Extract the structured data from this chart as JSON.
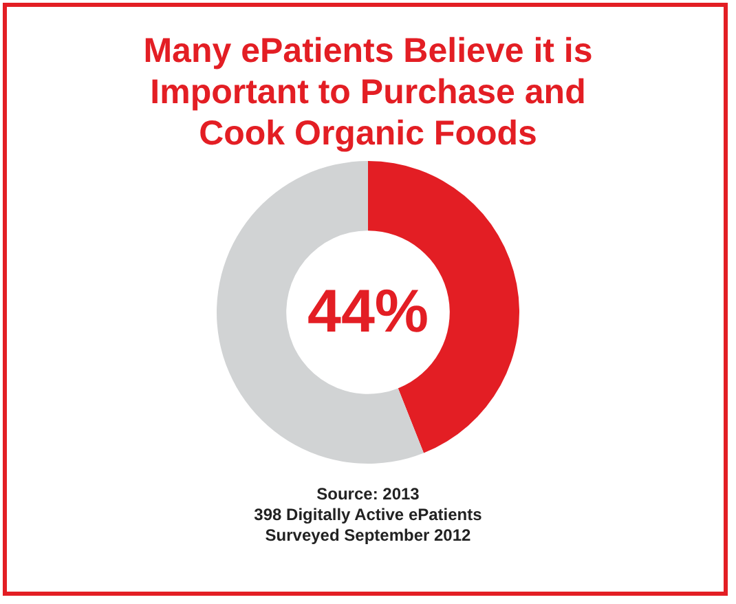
{
  "chart_data": {
    "type": "donut",
    "title": "Many ePatients Believe it is Important to Purchase and Cook Organic Foods",
    "categories": [
      null,
      null
    ],
    "values": [
      44,
      56
    ],
    "colors": [
      "#e31e24",
      "#d1d3d4"
    ],
    "value_labels": [
      "44%",
      null
    ],
    "annotations": [
      "Source: 2013",
      "398 Digitally Active ePatients",
      "Surveyed September 2012"
    ]
  }
}
